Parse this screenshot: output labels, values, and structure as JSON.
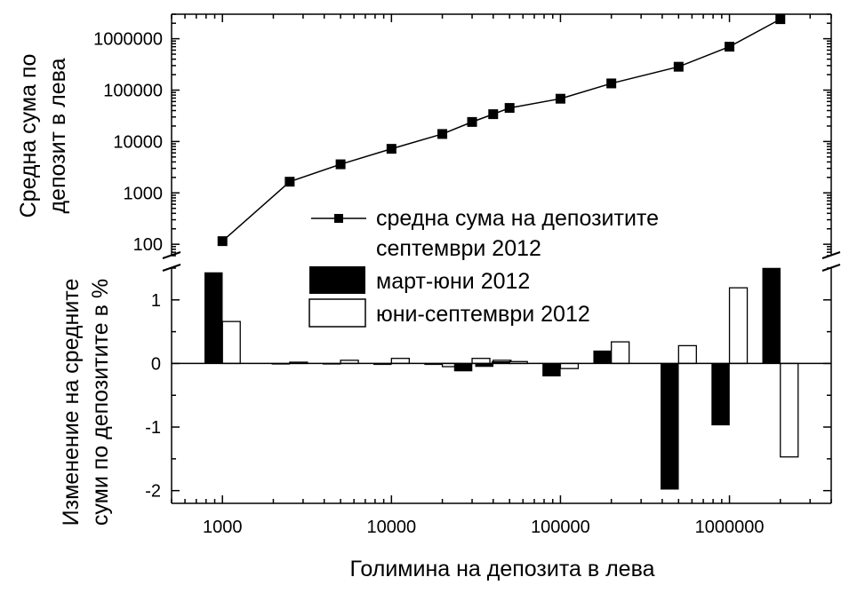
{
  "chart_data": [
    {
      "type": "line",
      "panel": "top",
      "scale": "log",
      "ylabel_lines": [
        "Средна сума по",
        "депозит в лева"
      ],
      "yticks": [
        100,
        1000,
        10000,
        100000,
        1000000
      ],
      "ytick_labels": [
        "100",
        "1000",
        "10000",
        "100000",
        "1000000"
      ],
      "ylim": [
        60,
        3000000
      ],
      "xlim": [
        500,
        4000000
      ],
      "series": [
        {
          "name": "средна сума на депозитите септември 2012",
          "marker": "square",
          "x": [
            1000,
            2500,
            5000,
            10000,
            20000,
            30000,
            40000,
            50000,
            100000,
            200000,
            500000,
            1000000,
            2000000
          ],
          "y": [
            115,
            1650,
            3600,
            7200,
            14000,
            24000,
            34000,
            45000,
            68000,
            135000,
            285000,
            700000,
            2400000
          ]
        }
      ],
      "legend_lines": [
        "средна сума на депозитите",
        "септември 2012"
      ]
    },
    {
      "type": "bar",
      "panel": "bottom",
      "ylabel_lines": [
        "Изменение на средните",
        "суми по депозитите в %"
      ],
      "xlabel": "Голимина на депозита в лева",
      "yticks": [
        -2,
        -1,
        0,
        1
      ],
      "ytick_labels": [
        "-2",
        "-1",
        "0",
        "1"
      ],
      "ylim": [
        -2.2,
        1.5
      ],
      "xticks": [
        1000,
        10000,
        100000,
        1000000
      ],
      "xtick_labels": [
        "1000",
        "10000",
        "100000",
        "1000000"
      ],
      "categories": [
        1000,
        2500,
        5000,
        10000,
        20000,
        30000,
        40000,
        50000,
        100000,
        200000,
        500000,
        1000000,
        2000000
      ],
      "series": [
        {
          "name": "март-юни 2012",
          "color": "#000000",
          "values": [
            1.43,
            0.0,
            0.0,
            -0.02,
            -0.02,
            -0.12,
            -0.05,
            0.03,
            -0.2,
            0.2,
            -1.98,
            -0.97,
            1.5
          ]
        },
        {
          "name": "юни-септември 2012",
          "color": "#ffffff",
          "values": [
            0.66,
            0.02,
            0.05,
            0.08,
            -0.05,
            0.08,
            0.05,
            0.03,
            -0.08,
            0.34,
            0.28,
            1.19,
            -1.47
          ]
        }
      ]
    }
  ]
}
